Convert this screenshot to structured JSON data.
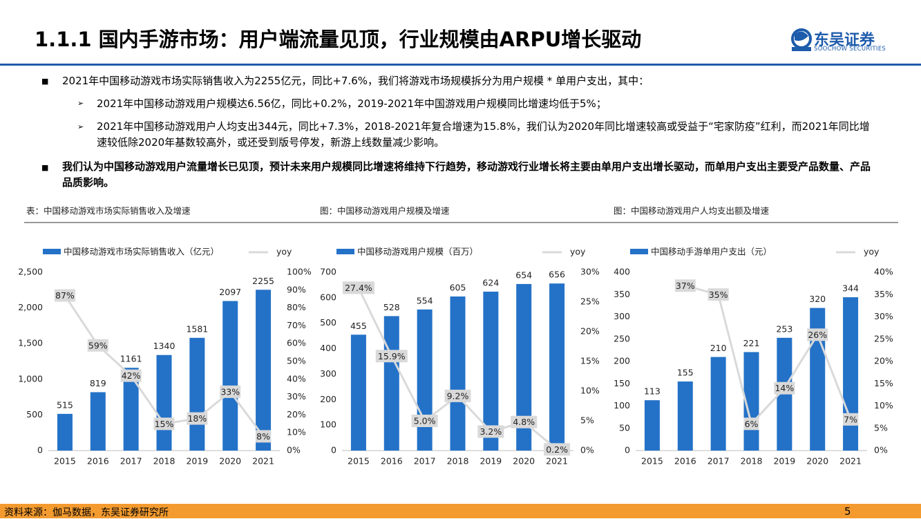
{
  "header": {
    "title": "1.1.1 国内手游市场：用户端流量见顶，行业规模由ARPU增长驱动",
    "logo_cn": "东吴证券",
    "logo_en": "SOOCHOW SECURITIES"
  },
  "bullets": [
    {
      "text": "2021年中国移动游戏市场实际销售收入为2255亿元，同比+7.6%，我们将游戏市场规模拆分为用户规模 * 单用户支出，其中：",
      "sub": [
        "2021年中国移动游戏用户规模达6.56亿，同比+0.2%，2019-2021年中国游戏用户规模同比增速均低于5%；",
        "2021年中国移动游戏用户人均支出344元，同比+7.3%，2018-2021年复合增速为15.8%，我们认为2020年同比增速较高或受益于“宅家防疫”红利，而2021年同比增速较低除2020年基数较高外，或还受到版号停发，新游上线数量减少影响。"
      ]
    },
    {
      "text": "我们认为中国移动游戏用户流量增长已见顶，预计未来用户规模同比增速将维持下行趋势，移动游戏行业增长将主要由单用户支出增长驱动，而单用户支出主要受产品数量、产品品质影响。",
      "sub": []
    }
  ],
  "chart_data": [
    {
      "type": "bar_line",
      "caption": "表：中国移动游戏市场实际销售收入及增速",
      "categories": [
        "2015",
        "2016",
        "2017",
        "2018",
        "2019",
        "2020",
        "2021"
      ],
      "series": [
        {
          "name": "中国移动游戏市场实际销售收入（亿元）",
          "color": "#2472c8",
          "values": [
            515,
            819,
            1161,
            1340,
            1581,
            2097,
            2255
          ]
        },
        {
          "name": "yoy",
          "color": "#d9d9d9",
          "axis": "y2",
          "values": [
            87,
            59,
            42,
            15,
            18,
            33,
            8
          ],
          "value_labels": [
            "87%",
            "59%",
            "42%",
            "15%",
            "18%",
            "33%",
            "8%"
          ]
        }
      ],
      "ylim": [
        0,
        2500
      ],
      "yticks": [
        0,
        500,
        {
          "value": 1000,
          "label": "1,000"
        },
        {
          "value": 1500,
          "label": "1,500"
        },
        {
          "value": 2000,
          "label": "2,000"
        },
        {
          "value": 2500,
          "label": "2,500"
        }
      ],
      "y2lim": [
        0,
        100
      ],
      "y2ticks": [
        {
          "value": 0,
          "label": "0%"
        },
        {
          "value": 10,
          "label": "10%"
        },
        {
          "value": 20,
          "label": "20%"
        },
        {
          "value": 30,
          "label": "30%"
        },
        {
          "value": 40,
          "label": "40%"
        },
        {
          "value": 50,
          "label": "50%"
        },
        {
          "value": 60,
          "label": "60%"
        },
        {
          "value": 70,
          "label": "70%"
        },
        {
          "value": 80,
          "label": "80%"
        },
        {
          "value": 90,
          "label": "90%"
        },
        {
          "value": 100,
          "label": "100%"
        }
      ],
      "grid": false
    },
    {
      "type": "bar_line",
      "caption": "图：中国移动游戏用户规模及增速",
      "categories": [
        "2015",
        "2016",
        "2017",
        "2018",
        "2019",
        "2020",
        "2021"
      ],
      "series": [
        {
          "name": "中国移动游戏用户规模（百万）",
          "color": "#2472c8",
          "values": [
            455,
            528,
            554,
            605,
            624,
            654,
            656
          ]
        },
        {
          "name": "yoy",
          "color": "#d9d9d9",
          "axis": "y2",
          "values": [
            27.4,
            15.9,
            5.0,
            9.2,
            3.2,
            4.8,
            0.2
          ],
          "value_labels": [
            "27.4%",
            "15.9%",
            "5.0%",
            "9.2%",
            "3.2%",
            "4.8%",
            "0.2%"
          ]
        }
      ],
      "ylim": [
        0,
        700
      ],
      "yticks": [
        0,
        100,
        200,
        300,
        400,
        500,
        600,
        700
      ],
      "y2lim": [
        0,
        30
      ],
      "y2ticks": [
        {
          "value": 0,
          "label": "0%"
        },
        {
          "value": 5,
          "label": "5%"
        },
        {
          "value": 10,
          "label": "10%"
        },
        {
          "value": 15,
          "label": "15%"
        },
        {
          "value": 20,
          "label": "20%"
        },
        {
          "value": 25,
          "label": "25%"
        },
        {
          "value": 30,
          "label": "30%"
        }
      ],
      "grid": false
    },
    {
      "type": "bar_line",
      "caption": "图：中国移动游戏用户人均支出额及增速",
      "categories": [
        "2015",
        "2016",
        "2017",
        "2018",
        "2019",
        "2020",
        "2021"
      ],
      "series": [
        {
          "name": "中国移动手游单用户支出（元）",
          "color": "#2472c8",
          "values": [
            113,
            155,
            210,
            221,
            253,
            320,
            344
          ]
        },
        {
          "name": "yoy",
          "color": "#d9d9d9",
          "axis": "y2",
          "values": [
            null,
            37,
            35,
            6,
            14,
            26,
            7
          ],
          "value_labels": [
            null,
            "37%",
            "35%",
            "6%",
            "14%",
            "26%",
            "7%"
          ]
        }
      ],
      "ylim": [
        0,
        400
      ],
      "yticks": [
        0,
        50,
        100,
        150,
        200,
        250,
        300,
        350,
        400
      ],
      "y2lim": [
        0,
        40
      ],
      "y2ticks": [
        {
          "value": 0,
          "label": "0%"
        },
        {
          "value": 5,
          "label": "5%"
        },
        {
          "value": 10,
          "label": "10%"
        },
        {
          "value": 15,
          "label": "15%"
        },
        {
          "value": 20,
          "label": "20%"
        },
        {
          "value": 25,
          "label": "25%"
        },
        {
          "value": 30,
          "label": "30%"
        },
        {
          "value": 35,
          "label": "35%"
        },
        {
          "value": 40,
          "label": "40%"
        }
      ],
      "grid": false
    }
  ],
  "footer": {
    "source": "资料来源：伽马数据，东吴证券研究所",
    "page": "5"
  }
}
